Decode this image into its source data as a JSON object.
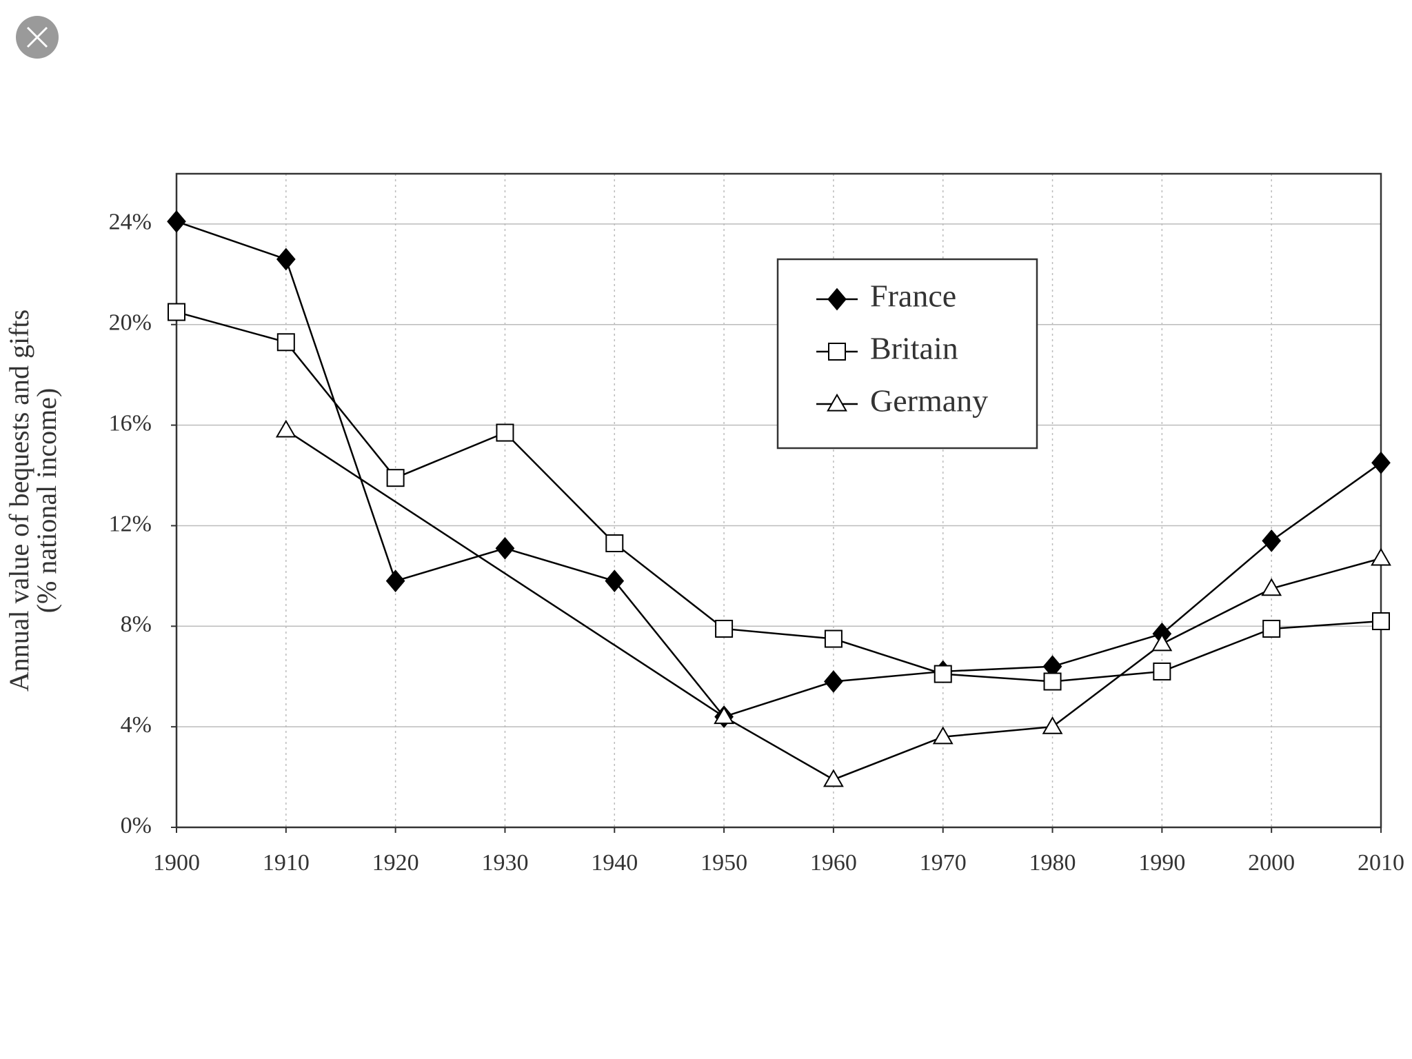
{
  "chart_data": {
    "type": "line",
    "y_label": [
      "Annual value of bequests and gifts",
      "(% national income)"
    ],
    "x": [
      1900,
      1910,
      1920,
      1930,
      1940,
      1950,
      1960,
      1970,
      1980,
      1990,
      2000,
      2010
    ],
    "series": [
      {
        "name": "France",
        "color": "#000000",
        "marker": "diamond",
        "values": [
          24.1,
          22.6,
          9.8,
          11.1,
          9.8,
          4.4,
          5.8,
          6.2,
          6.4,
          7.7,
          11.4,
          14.5
        ]
      },
      {
        "name": "Britain",
        "color": "#000000",
        "marker": "square",
        "values": [
          20.5,
          19.3,
          13.9,
          15.7,
          11.3,
          7.9,
          7.5,
          6.1,
          5.8,
          6.2,
          7.9,
          8.2
        ]
      },
      {
        "name": "Germany",
        "color": "#000000",
        "marker": "triangle",
        "x": [
          1910,
          1950,
          1960,
          1970,
          1980,
          1990,
          2000,
          2010
        ],
        "values": [
          15.8,
          4.4,
          1.9,
          3.6,
          4.0,
          7.3,
          9.5,
          10.7
        ]
      }
    ],
    "xlim": [
      1900,
      2010
    ],
    "xticks": [
      1900,
      1910,
      1920,
      1930,
      1940,
      1950,
      1960,
      1970,
      1980,
      1990,
      2000,
      2010
    ],
    "ylim": [
      0,
      26
    ],
    "yticks": [
      {
        "value": 0,
        "label": "0%"
      },
      {
        "value": 4,
        "label": "4%"
      },
      {
        "value": 8,
        "label": "8%"
      },
      {
        "value": 12,
        "label": "12%"
      },
      {
        "value": 16,
        "label": "16%"
      },
      {
        "value": 20,
        "label": "20%"
      },
      {
        "value": 24,
        "label": "24%"
      }
    ],
    "grid": true,
    "legend": "upper-center"
  }
}
